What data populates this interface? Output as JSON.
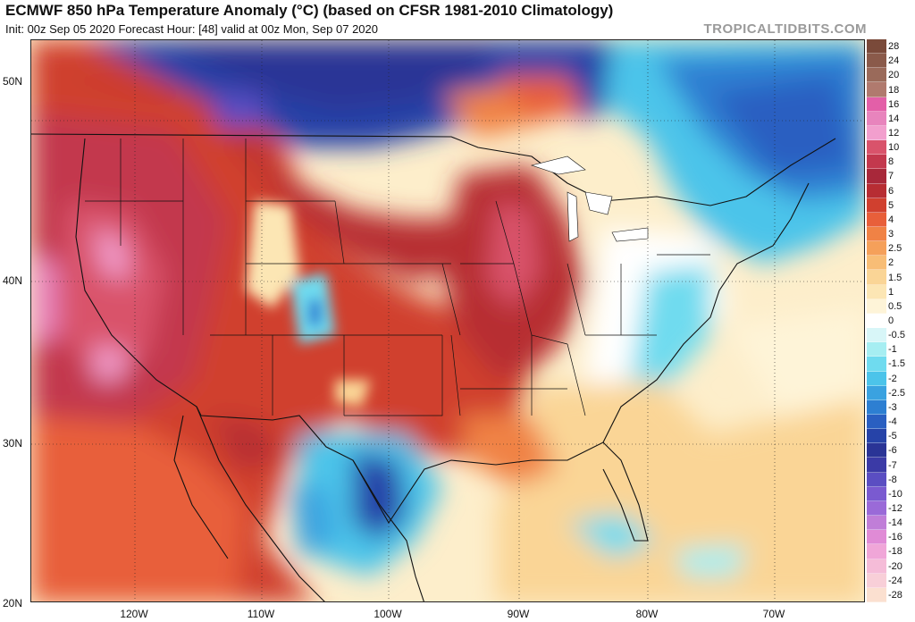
{
  "header": {
    "title": "ECMWF 850 hPa Temperature Anomaly (°C) (based on CFSR 1981-2010 Climatology)",
    "subtitle": "Init: 00z Sep 05 2020   Forecast Hour: [48]   valid at 00z Mon, Sep 07 2020",
    "watermark": "TROPICALTIDBITS.COM"
  },
  "axes": {
    "lat_labels": [
      "50N",
      "40N",
      "30N",
      "20N"
    ],
    "lon_labels": [
      "120W",
      "110W",
      "100W",
      "90W",
      "80W",
      "70W"
    ]
  },
  "colorbar": {
    "entries": [
      {
        "label": "28",
        "color": "#7a4a3a"
      },
      {
        "label": "24",
        "color": "#8a5a4a"
      },
      {
        "label": "20",
        "color": "#9a6a5a"
      },
      {
        "label": "18",
        "color": "#b07a6e"
      },
      {
        "label": "16",
        "color": "#e35fa8"
      },
      {
        "label": "14",
        "color": "#e884bd"
      },
      {
        "label": "12",
        "color": "#f29fce"
      },
      {
        "label": "10",
        "color": "#d9536b"
      },
      {
        "label": "8",
        "color": "#c3384d"
      },
      {
        "label": "7",
        "color": "#a8283a"
      },
      {
        "label": "6",
        "color": "#b72d33"
      },
      {
        "label": "5",
        "color": "#d0402f"
      },
      {
        "label": "4",
        "color": "#e85f3a"
      },
      {
        "label": "3",
        "color": "#f08245"
      },
      {
        "label": "2.5",
        "color": "#f5a05a"
      },
      {
        "label": "2",
        "color": "#f8bd76"
      },
      {
        "label": "1.5",
        "color": "#fad596"
      },
      {
        "label": "1",
        "color": "#fce6b4"
      },
      {
        "label": "0.5",
        "color": "#fef4d8"
      },
      {
        "label": "0",
        "color": "#ffffff"
      },
      {
        "label": "-0.5",
        "color": "#d8f6f8"
      },
      {
        "label": "-1",
        "color": "#a6eef2"
      },
      {
        "label": "-1.5",
        "color": "#6fdbef"
      },
      {
        "label": "-2",
        "color": "#4cc4ea"
      },
      {
        "label": "-2.5",
        "color": "#3aa2e0"
      },
      {
        "label": "-3",
        "color": "#2d7fd2"
      },
      {
        "label": "-4",
        "color": "#2a5fc1"
      },
      {
        "label": "-5",
        "color": "#2643a8"
      },
      {
        "label": "-6",
        "color": "#2a3496"
      },
      {
        "label": "-7",
        "color": "#3b3aa6"
      },
      {
        "label": "-8",
        "color": "#5a4ec2"
      },
      {
        "label": "-10",
        "color": "#7a5ad0"
      },
      {
        "label": "-12",
        "color": "#9a6ad8"
      },
      {
        "label": "-14",
        "color": "#c07ed8"
      },
      {
        "label": "-16",
        "color": "#e08bd6"
      },
      {
        "label": "-18",
        "color": "#f0a6d8"
      },
      {
        "label": "-20",
        "color": "#f5bcd8"
      },
      {
        "label": "-24",
        "color": "#f8cfd8"
      },
      {
        "label": "-28",
        "color": "#fbe0d0"
      }
    ]
  }
}
